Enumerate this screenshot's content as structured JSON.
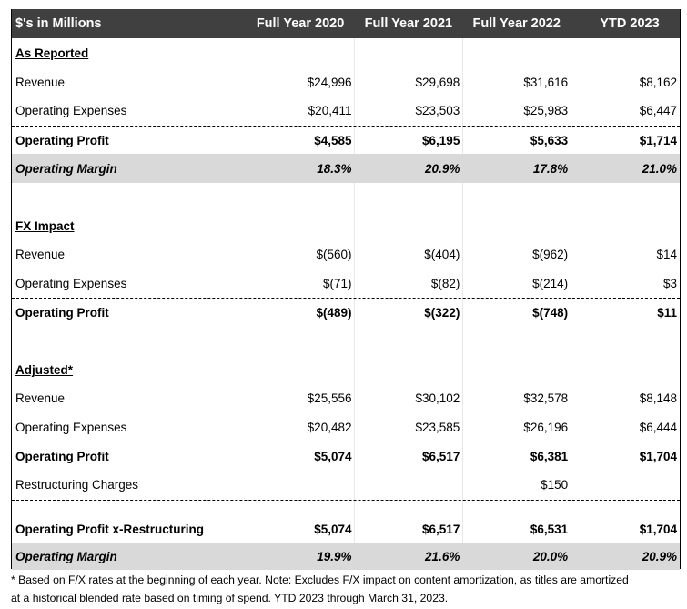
{
  "header": {
    "label": "$'s in Millions",
    "columns": [
      "Full Year 2020",
      "Full Year 2021",
      "Full Year 2022",
      "YTD 2023"
    ]
  },
  "rows": [
    {
      "type": "section",
      "label": "As Reported",
      "values": [
        "",
        "",
        "",
        ""
      ]
    },
    {
      "type": "normal",
      "label": "Revenue",
      "values": [
        "$24,996",
        "$29,698",
        "$31,616",
        "$8,162"
      ]
    },
    {
      "type": "normal",
      "label": "Operating Expenses",
      "values": [
        "$20,411",
        "$23,503",
        "$25,983",
        "$6,447"
      ]
    },
    {
      "type": "bold",
      "dashed": true,
      "label": "Operating Profit",
      "values": [
        "$4,585",
        "$6,195",
        "$5,633",
        "$1,714"
      ]
    },
    {
      "type": "margin",
      "label": "Operating Margin",
      "values": [
        "18.3%",
        "20.9%",
        "17.8%",
        "21.0%"
      ]
    },
    {
      "type": "blank",
      "label": "",
      "values": [
        "",
        "",
        "",
        ""
      ]
    },
    {
      "type": "section",
      "label": "FX Impact",
      "values": [
        "",
        "",
        "",
        ""
      ]
    },
    {
      "type": "normal",
      "label": "Revenue",
      "values": [
        "$(560)",
        "$(404)",
        "$(962)",
        "$14"
      ]
    },
    {
      "type": "normal",
      "label": "Operating Expenses",
      "values": [
        "$(71)",
        "$(82)",
        "$(214)",
        "$3"
      ]
    },
    {
      "type": "bold",
      "dashed": true,
      "label": "Operating Profit",
      "values": [
        "$(489)",
        "$(322)",
        "$(748)",
        "$11"
      ]
    },
    {
      "type": "blank",
      "label": "",
      "values": [
        "",
        "",
        "",
        ""
      ]
    },
    {
      "type": "section",
      "label": "Adjusted*",
      "values": [
        "",
        "",
        "",
        ""
      ]
    },
    {
      "type": "normal",
      "label": "Revenue",
      "values": [
        "$25,556",
        "$30,102",
        "$32,578",
        "$8,148"
      ]
    },
    {
      "type": "normal",
      "label": "Operating Expenses",
      "values": [
        "$20,482",
        "$23,585",
        "$26,196",
        "$6,444"
      ]
    },
    {
      "type": "bold",
      "dashed": true,
      "label": "Operating Profit",
      "values": [
        "$5,074",
        "$6,517",
        "$6,381",
        "$1,704"
      ]
    },
    {
      "type": "normal",
      "label": "Restructuring Charges",
      "values": [
        "",
        "",
        "$150",
        ""
      ]
    },
    {
      "type": "bold",
      "dashed": true,
      "tall": true,
      "label": "Operating Profit x-Restructuring",
      "values": [
        "$5,074",
        "$6,517",
        "$6,531",
        "$1,704"
      ]
    },
    {
      "type": "margin",
      "label": "Operating Margin",
      "values": [
        "19.9%",
        "21.6%",
        "20.0%",
        "20.9%"
      ]
    }
  ],
  "footnote": [
    "* Based on F/X rates at the beginning of each year. Note: Excludes F/X impact on content amortization, as titles are amortized",
    "at a historical blended rate based on timing of spend. YTD 2023 through March 31, 2023."
  ],
  "colors": {
    "header_bg": "#404040",
    "margin_bg": "#d9d9d9"
  }
}
